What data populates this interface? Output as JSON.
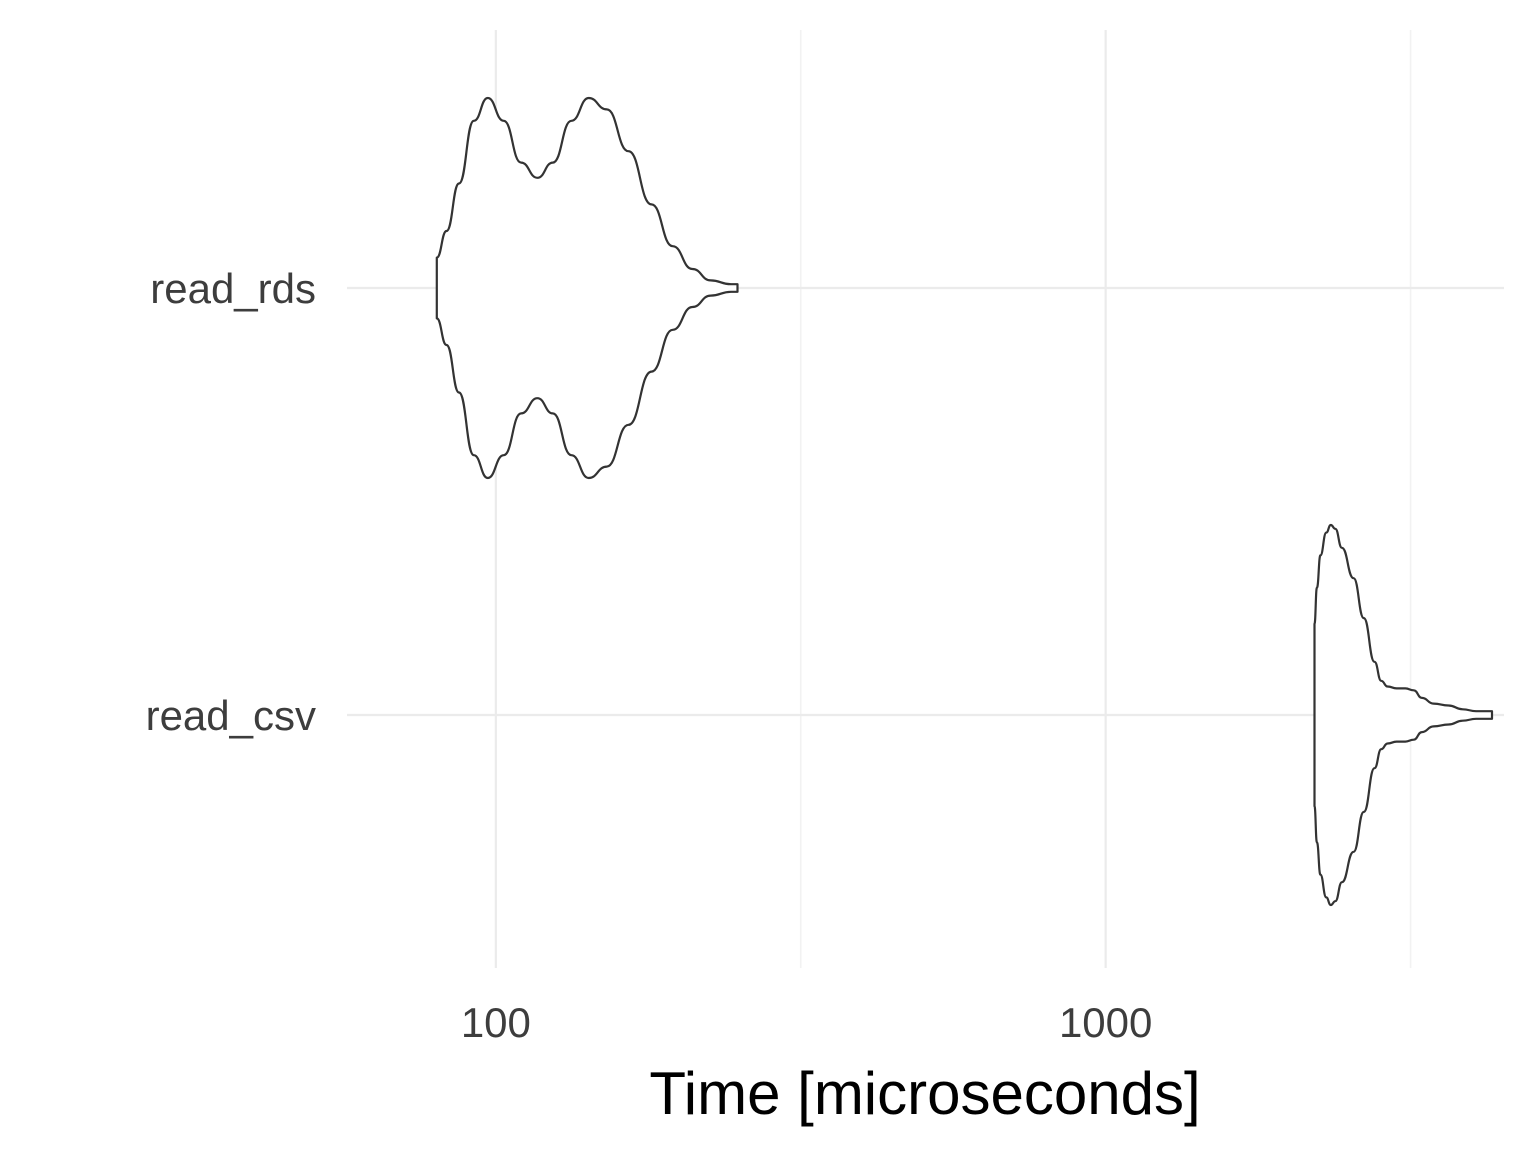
{
  "chart_data": {
    "type": "violin",
    "orientation": "horizontal",
    "xlabel": "Time [microseconds]",
    "ylabel": "",
    "x_scale": "log10",
    "xlim": [
      57,
      4500
    ],
    "x_major_ticks": [
      100,
      1000
    ],
    "x_tick_labels": [
      "100",
      "1000"
    ],
    "x_minor_ticks": [
      316.2,
      3162.3
    ],
    "grid": true,
    "categories": [
      "read_rds",
      "read_csv"
    ],
    "series": [
      {
        "name": "read_rds",
        "density": [
          [
            80,
            0.16
          ],
          [
            83,
            0.3
          ],
          [
            87,
            0.55
          ],
          [
            92,
            0.88
          ],
          [
            97,
            1.0
          ],
          [
            103,
            0.88
          ],
          [
            110,
            0.66
          ],
          [
            117,
            0.58
          ],
          [
            124,
            0.66
          ],
          [
            133,
            0.88
          ],
          [
            142,
            1.0
          ],
          [
            152,
            0.94
          ],
          [
            165,
            0.72
          ],
          [
            180,
            0.44
          ],
          [
            195,
            0.22
          ],
          [
            210,
            0.1
          ],
          [
            225,
            0.04
          ],
          [
            243,
            0.02
          ],
          [
            249,
            0.02
          ]
        ]
      },
      {
        "name": "read_csv",
        "density": [
          [
            2200,
            0.48
          ],
          [
            2220,
            0.67
          ],
          [
            2250,
            0.84
          ],
          [
            2300,
            0.96
          ],
          [
            2340,
            1.0
          ],
          [
            2380,
            0.98
          ],
          [
            2440,
            0.88
          ],
          [
            2550,
            0.72
          ],
          [
            2650,
            0.51
          ],
          [
            2760,
            0.28
          ],
          [
            2830,
            0.18
          ],
          [
            2900,
            0.15
          ],
          [
            3000,
            0.14
          ],
          [
            3100,
            0.14
          ],
          [
            3200,
            0.13
          ],
          [
            3300,
            0.09
          ],
          [
            3450,
            0.06
          ],
          [
            3650,
            0.05
          ],
          [
            3850,
            0.03
          ],
          [
            4050,
            0.02
          ],
          [
            4250,
            0.02
          ],
          [
            4300,
            0.02
          ]
        ]
      }
    ]
  }
}
